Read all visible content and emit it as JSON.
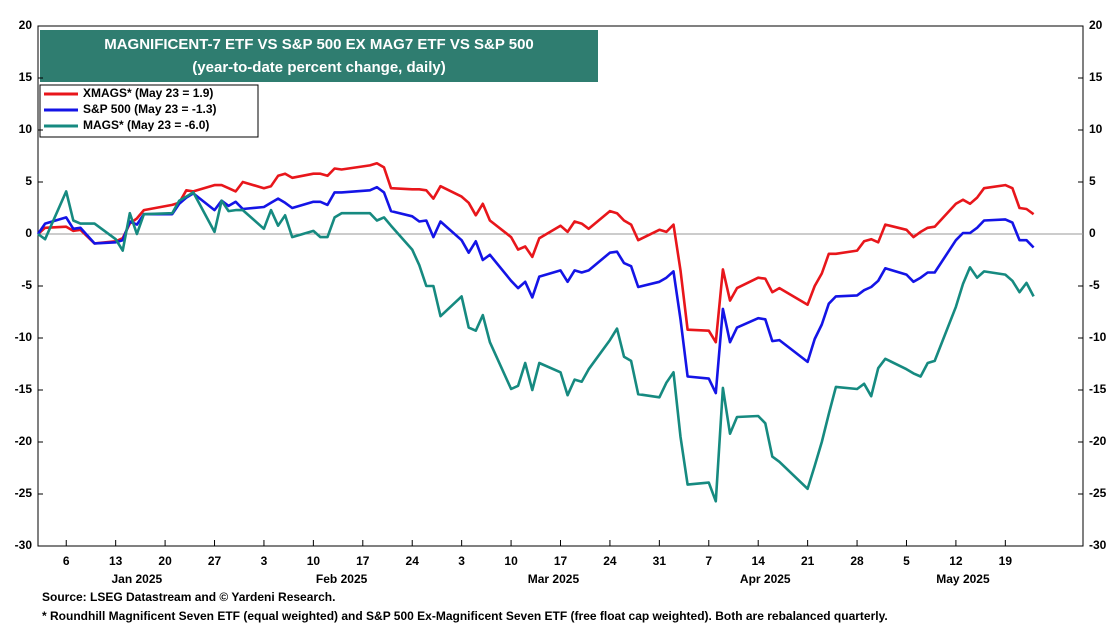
{
  "chart_data": {
    "type": "line",
    "title": "MAGNIFICENT-7 ETF VS S&P 500 EX MAG7 ETF VS S&P 500",
    "subtitle": "(year-to-date percent change, daily)",
    "source": "Source: LSEG Datastream and © Yardeni Research.",
    "footnote": "* Roundhill Magnificent Seven ETF (equal weighted) and S&P 500 Ex-Magnificent Seven ETF (free float cap weighted). Both are rebalanced quarterly.",
    "x": [
      "2025-01-02",
      "2025-01-03",
      "2025-01-06",
      "2025-01-07",
      "2025-01-08",
      "2025-01-10",
      "2025-01-13",
      "2025-01-14",
      "2025-01-15",
      "2025-01-16",
      "2025-01-17",
      "2025-01-21",
      "2025-01-22",
      "2025-01-23",
      "2025-01-24",
      "2025-01-27",
      "2025-01-28",
      "2025-01-29",
      "2025-01-30",
      "2025-01-31",
      "2025-02-03",
      "2025-02-04",
      "2025-02-05",
      "2025-02-06",
      "2025-02-07",
      "2025-02-10",
      "2025-02-11",
      "2025-02-12",
      "2025-02-13",
      "2025-02-14",
      "2025-02-18",
      "2025-02-19",
      "2025-02-20",
      "2025-02-21",
      "2025-02-24",
      "2025-02-25",
      "2025-02-26",
      "2025-02-27",
      "2025-02-28",
      "2025-03-03",
      "2025-03-04",
      "2025-03-05",
      "2025-03-06",
      "2025-03-07",
      "2025-03-10",
      "2025-03-11",
      "2025-03-12",
      "2025-03-13",
      "2025-03-14",
      "2025-03-17",
      "2025-03-18",
      "2025-03-19",
      "2025-03-20",
      "2025-03-21",
      "2025-03-24",
      "2025-03-25",
      "2025-03-26",
      "2025-03-27",
      "2025-03-28",
      "2025-03-31",
      "2025-04-01",
      "2025-04-02",
      "2025-04-03",
      "2025-04-04",
      "2025-04-07",
      "2025-04-08",
      "2025-04-09",
      "2025-04-10",
      "2025-04-11",
      "2025-04-14",
      "2025-04-15",
      "2025-04-16",
      "2025-04-17",
      "2025-04-21",
      "2025-04-22",
      "2025-04-23",
      "2025-04-24",
      "2025-04-25",
      "2025-04-28",
      "2025-04-29",
      "2025-04-30",
      "2025-05-01",
      "2025-05-02",
      "2025-05-05",
      "2025-05-06",
      "2025-05-07",
      "2025-05-08",
      "2025-05-09",
      "2025-05-12",
      "2025-05-13",
      "2025-05-14",
      "2025-05-15",
      "2025-05-16",
      "2025-05-19",
      "2025-05-20",
      "2025-05-21",
      "2025-05-22",
      "2025-05-23"
    ],
    "series": [
      {
        "name": "XMAGS* (May 23 = 1.9)",
        "color": "#e8161b",
        "values": [
          0,
          0.6,
          0.7,
          0.3,
          0.4,
          -0.9,
          -0.7,
          -0.4,
          1.0,
          1.5,
          2.3,
          2.8,
          3.0,
          4.2,
          4.1,
          4.7,
          4.7,
          4.4,
          4.1,
          5.0,
          4.4,
          4.6,
          5.6,
          5.8,
          5.4,
          5.8,
          5.8,
          5.6,
          6.3,
          6.2,
          6.6,
          6.8,
          6.4,
          4.4,
          4.3,
          4.3,
          4.2,
          3.4,
          4.6,
          3.6,
          3.0,
          1.8,
          2.9,
          1.3,
          -0.3,
          -1.5,
          -1.2,
          -2.2,
          -0.4,
          0.8,
          0.2,
          1.2,
          1.0,
          0.5,
          2.2,
          2.0,
          1.3,
          0.9,
          -0.6,
          0.4,
          0.2,
          0.9,
          -3.5,
          -9.2,
          -9.3,
          -10.4,
          -3.4,
          -6.4,
          -5.2,
          -4.2,
          -4.3,
          -5.6,
          -5.2,
          -6.8,
          -5.0,
          -3.8,
          -1.9,
          -1.9,
          -1.6,
          -0.7,
          -0.5,
          -0.8,
          0.9,
          0.4,
          -0.3,
          0.2,
          0.6,
          0.7,
          2.9,
          3.3,
          2.9,
          3.5,
          4.4,
          4.7,
          4.4,
          2.5,
          2.4,
          1.9
        ]
      },
      {
        "name": "S&P 500 (May 23 = -1.3)",
        "color": "#1414e6",
        "values": [
          0,
          1.0,
          1.6,
          0.5,
          0.6,
          -0.9,
          -0.8,
          -0.6,
          1.2,
          0.9,
          1.9,
          1.9,
          2.9,
          3.5,
          3.9,
          2.3,
          3.2,
          2.7,
          3.1,
          2.4,
          2.6,
          3.0,
          3.4,
          3.0,
          2.5,
          3.1,
          3.1,
          2.8,
          4.0,
          4.0,
          4.2,
          4.5,
          4.0,
          2.2,
          1.7,
          1.2,
          1.3,
          -0.3,
          1.2,
          -0.6,
          -1.8,
          -0.7,
          -2.5,
          -2.0,
          -4.5,
          -5.2,
          -4.6,
          -6.1,
          -4.1,
          -3.5,
          -4.6,
          -3.5,
          -3.7,
          -3.5,
          -1.8,
          -1.7,
          -2.8,
          -3.1,
          -5.1,
          -4.6,
          -4.2,
          -3.6,
          -8.2,
          -13.7,
          -13.9,
          -15.3,
          -7.2,
          -10.4,
          -9.0,
          -8.1,
          -8.2,
          -10.3,
          -10.2,
          -12.3,
          -10.1,
          -8.7,
          -6.7,
          -6.0,
          -5.9,
          -5.4,
          -5.1,
          -4.5,
          -3.3,
          -3.9,
          -4.6,
          -4.2,
          -3.7,
          -3.7,
          -0.6,
          0.1,
          0.1,
          0.6,
          1.3,
          1.4,
          1.1,
          -0.6,
          -0.6,
          -1.3
        ]
      },
      {
        "name": "MAGS* (May 23 = -6.0)",
        "color": "#168a80",
        "values": [
          0,
          -0.5,
          4.1,
          1.3,
          1.0,
          1.0,
          -0.5,
          -1.6,
          2.0,
          0,
          1.9,
          2.0,
          3.2,
          3.6,
          4.0,
          0.2,
          3.2,
          2.2,
          2.3,
          2.3,
          0.5,
          2.3,
          0.8,
          1.8,
          -0.3,
          0.3,
          -0.3,
          -0.3,
          1.6,
          2.0,
          2.0,
          1.3,
          1.6,
          0.8,
          -1.5,
          -3.0,
          -5.0,
          -5.0,
          -7.9,
          -6.0,
          -9.0,
          -9.3,
          -7.8,
          -10.4,
          -14.9,
          -14.6,
          -12.4,
          -15.0,
          -12.4,
          -13.3,
          -15.5,
          -14.0,
          -14.2,
          -13.0,
          -10.2,
          -9.1,
          -11.8,
          -12.2,
          -15.4,
          -15.7,
          -14.3,
          -13.3,
          -19.5,
          -24.1,
          -23.9,
          -25.7,
          -14.8,
          -19.2,
          -17.6,
          -17.5,
          -18.2,
          -21.4,
          -21.9,
          -24.5,
          -22.3,
          -20.0,
          -17.3,
          -14.7,
          -14.9,
          -14.4,
          -15.6,
          -12.9,
          -12.0,
          -13.0,
          -13.4,
          -13.7,
          -12.4,
          -12.2,
          -7.0,
          -4.8,
          -3.2,
          -4.2,
          -3.6,
          -3.9,
          -4.5,
          -5.6,
          -4.7,
          -6.0
        ]
      }
    ],
    "xlim": [
      "2025-01-02",
      "2025-05-30"
    ],
    "xticks": [
      {
        "value": "2025-01-06",
        "label": "6"
      },
      {
        "value": "2025-01-13",
        "label": "13"
      },
      {
        "value": "2025-01-20",
        "label": "20"
      },
      {
        "value": "2025-01-27",
        "label": "27"
      },
      {
        "value": "2025-02-03",
        "label": "3"
      },
      {
        "value": "2025-02-10",
        "label": "10"
      },
      {
        "value": "2025-02-17",
        "label": "17"
      },
      {
        "value": "2025-02-24",
        "label": "24"
      },
      {
        "value": "2025-03-03",
        "label": "3"
      },
      {
        "value": "2025-03-10",
        "label": "10"
      },
      {
        "value": "2025-03-17",
        "label": "17"
      },
      {
        "value": "2025-03-24",
        "label": "24"
      },
      {
        "value": "2025-03-31",
        "label": "31"
      },
      {
        "value": "2025-04-07",
        "label": "7"
      },
      {
        "value": "2025-04-14",
        "label": "14"
      },
      {
        "value": "2025-04-21",
        "label": "21"
      },
      {
        "value": "2025-04-28",
        "label": "28"
      },
      {
        "value": "2025-05-05",
        "label": "5"
      },
      {
        "value": "2025-05-12",
        "label": "12"
      },
      {
        "value": "2025-05-19",
        "label": "19"
      }
    ],
    "month_labels": [
      {
        "value": "2025-01-16",
        "label": "Jan 2025"
      },
      {
        "value": "2025-02-14",
        "label": "Feb 2025"
      },
      {
        "value": "2025-03-16",
        "label": "Mar 2025"
      },
      {
        "value": "2025-04-15",
        "label": "Apr 2025"
      },
      {
        "value": "2025-05-13",
        "label": "May 2025"
      }
    ],
    "ylim": [
      -30,
      20
    ],
    "yticks": [
      -30,
      -25,
      -20,
      -15,
      -10,
      -5,
      0,
      5,
      10,
      15,
      20
    ],
    "y2lim": [
      -30,
      20
    ],
    "y2ticks": [
      -30,
      -25,
      -20,
      -15,
      -10,
      -5,
      0,
      5,
      10,
      15,
      20
    ],
    "reference_line": 0,
    "legend": "upper left"
  }
}
